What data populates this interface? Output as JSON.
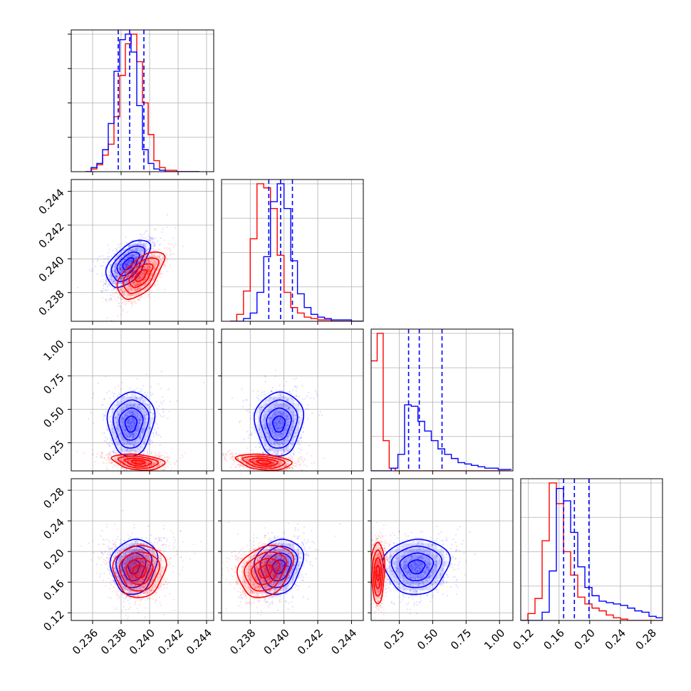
{
  "chart_data": {
    "type": "scatter",
    "description": "corner",
    "colors": {
      "series_a": "#0000ff",
      "series_b": "#ff0000",
      "grid": "#b0b0b0",
      "frame": "#000000"
    },
    "grid": true,
    "params": [
      {
        "id": "p1",
        "range": [
          0.2345,
          0.2445
        ],
        "ticks": [
          0.236,
          0.238,
          0.24,
          0.242,
          0.244
        ],
        "tick_labels": [
          "0.236",
          "0.238",
          "0.240",
          "0.242",
          "0.244"
        ]
      },
      {
        "id": "p2",
        "range": [
          0.2363,
          0.2447
        ],
        "ticks": [
          0.238,
          0.24,
          0.242,
          0.244
        ],
        "tick_labels": [
          "0.238",
          "0.240",
          "0.242",
          "0.244"
        ]
      },
      {
        "id": "p3",
        "range": [
          0.04,
          1.1
        ],
        "ticks": [
          0.25,
          0.5,
          0.75,
          1.0
        ],
        "tick_labels": [
          "0.25",
          "0.50",
          "0.75",
          "1.00"
        ]
      },
      {
        "id": "p4",
        "range": [
          0.11,
          0.295
        ],
        "ticks": [
          0.12,
          0.16,
          0.2,
          0.24,
          0.28
        ],
        "tick_labels": [
          "0.12",
          "0.16",
          "0.20",
          "0.24",
          "0.28"
        ]
      }
    ],
    "series": [
      {
        "color": "#0000ff",
        "marginals": [
          {
            "edges_from": 0.2355,
            "bin_width": 0.0004,
            "counts": [
              0,
              0.03,
              0.06,
              0.16,
              0.35,
              0.73,
              0.96,
              1.0,
              0.87,
              0.48,
              0.16,
              0.06,
              0.02,
              0.01,
              0,
              0,
              0,
              0,
              0,
              0
            ],
            "quantiles": [
              0.2378,
              0.2386,
              0.2396
            ]
          },
          {
            "edges_from": 0.2368,
            "bin_width": 0.0004,
            "counts": [
              0,
              0,
              0.02,
              0.06,
              0.21,
              0.47,
              0.87,
              1.0,
              0.82,
              0.44,
              0.2,
              0.1,
              0.05,
              0.03,
              0.02,
              0.01,
              0.01,
              0.01,
              0,
              0
            ],
            "quantiles": [
              0.2391,
              0.2398,
              0.2405
            ]
          },
          {
            "edges_from": 0.04,
            "bin_width": 0.05,
            "counts": [
              0,
              0,
              0,
              0.02,
              0.12,
              0.48,
              0.47,
              0.36,
              0.29,
              0.22,
              0.16,
              0.12,
              0.09,
              0.06,
              0.05,
              0.04,
              0.03,
              0.02,
              0.02,
              0.01,
              0.01
            ],
            "quantiles": [
              0.32,
              0.4,
              0.57
            ]
          },
          {
            "edges_from": 0.11,
            "bin_width": 0.0093,
            "counts": [
              0,
              0,
              0,
              0.06,
              0.36,
              0.96,
              0.87,
              0.64,
              0.39,
              0.24,
              0.18,
              0.14,
              0.13,
              0.12,
              0.11,
              0.09,
              0.07,
              0.06,
              0.03,
              0.02
            ],
            "quantiles": [
              0.166,
              0.18,
              0.199
            ]
          }
        ],
        "pairs": [
          {
            "x": 0,
            "y": 1,
            "center": [
              0.2385,
              0.2397
            ],
            "sigma": [
              0.00075,
              0.0007
            ],
            "rho": 0.55
          },
          {
            "x": 0,
            "y": 2,
            "center": [
              0.2387,
              0.39
            ],
            "sigma": [
              0.0008,
              0.12
            ],
            "rho": 0.05
          },
          {
            "x": 1,
            "y": 2,
            "center": [
              0.2397,
              0.39
            ],
            "sigma": [
              0.0007,
              0.12
            ],
            "rho": 0.05
          },
          {
            "x": 0,
            "y": 3,
            "center": [
              0.2389,
              0.18
            ],
            "sigma": [
              0.0008,
              0.018
            ],
            "rho": 0.1
          },
          {
            "x": 1,
            "y": 3,
            "center": [
              0.2397,
              0.18
            ],
            "sigma": [
              0.0007,
              0.018
            ],
            "rho": 0.15
          },
          {
            "x": 2,
            "y": 3,
            "center": [
              0.38,
              0.18
            ],
            "sigma": [
              0.12,
              0.018
            ],
            "rho": 0.05
          }
        ]
      },
      {
        "color": "#ff0000",
        "marginals": [
          {
            "edges_from": 0.2355,
            "bin_width": 0.0004,
            "counts": [
              0,
              0.02,
              0.05,
              0.12,
              0.2,
              0.4,
              0.7,
              0.93,
              1.0,
              0.8,
              0.5,
              0.27,
              0.08,
              0.03,
              0.01,
              0.01,
              0,
              0,
              0,
              0
            ],
            "quantiles": []
          },
          {
            "edges_from": 0.2368,
            "bin_width": 0.0004,
            "counts": [
              0,
              0.05,
              0.22,
              0.6,
              1.0,
              0.97,
              0.82,
              0.48,
              0.21,
              0.1,
              0.06,
              0.03,
              0.02,
              0.01,
              0.01,
              0,
              0,
              0,
              0,
              0
            ],
            "quantiles": []
          },
          {
            "edges_from": 0.04,
            "bin_width": 0.045,
            "counts": [
              0.8,
              1.0,
              0.22,
              0.02,
              0,
              0,
              0,
              0,
              0,
              0,
              0,
              0,
              0,
              0,
              0,
              0,
              0,
              0,
              0,
              0,
              0,
              0,
              0
            ],
            "quantiles": []
          },
          {
            "edges_from": 0.11,
            "bin_width": 0.0093,
            "counts": [
              0,
              0.05,
              0.16,
              0.58,
              1.0,
              0.85,
              0.5,
              0.33,
              0.17,
              0.12,
              0.09,
              0.07,
              0.04,
              0.02,
              0.01,
              0,
              0,
              0,
              0,
              0
            ],
            "quantiles": []
          }
        ],
        "pairs": [
          {
            "x": 0,
            "y": 1,
            "center": [
              0.2394,
              0.239
            ],
            "sigma": [
              0.0008,
              0.0007
            ],
            "rho": 0.6
          },
          {
            "x": 0,
            "y": 2,
            "center": [
              0.2392,
              0.105
            ],
            "sigma": [
              0.0009,
              0.03
            ],
            "rho": -0.3
          },
          {
            "x": 1,
            "y": 2,
            "center": [
              0.2388,
              0.105
            ],
            "sigma": [
              0.0008,
              0.03
            ],
            "rho": -0.3
          },
          {
            "x": 0,
            "y": 3,
            "center": [
              0.2393,
              0.174
            ],
            "sigma": [
              0.0009,
              0.017
            ],
            "rho": 0.05
          },
          {
            "x": 1,
            "y": 3,
            "center": [
              0.2389,
              0.174
            ],
            "sigma": [
              0.0008,
              0.017
            ],
            "rho": 0.25
          },
          {
            "x": 2,
            "y": 3,
            "center": [
              0.09,
              0.172
            ],
            "sigma": [
              0.025,
              0.02
            ],
            "rho": 0.0
          }
        ]
      }
    ]
  }
}
